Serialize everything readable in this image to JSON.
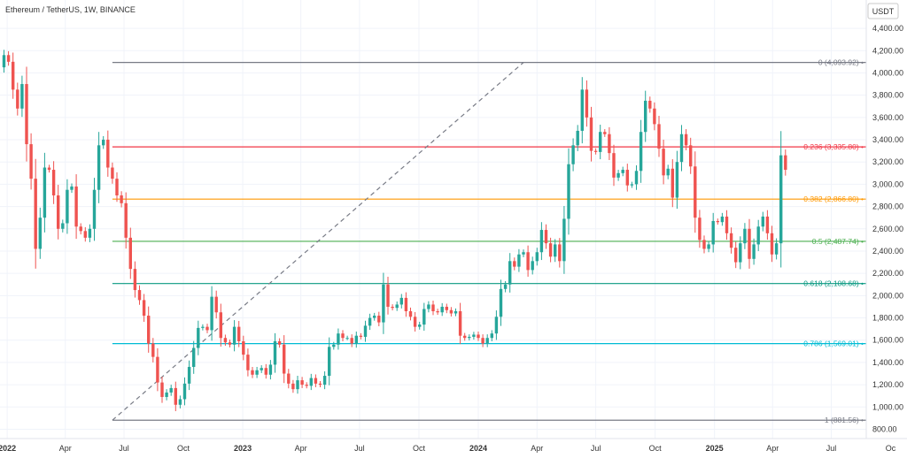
{
  "header": {
    "symbol_title": "Ethereum / TetherUS, 1W, BINANCE"
  },
  "price_axis": {
    "currency": "USDT",
    "ticks": [
      800,
      1000,
      1200,
      1400,
      1600,
      1800,
      2000,
      2200,
      2400,
      2600,
      2800,
      3000,
      3200,
      3400,
      3600,
      3800,
      4000,
      4200,
      4400
    ],
    "tick_labels": [
      "800.00",
      "1,000.00",
      "1,200.00",
      "1,400.00",
      "1,600.00",
      "1,800.00",
      "2,000.00",
      "2,200.00",
      "2,400.00",
      "2,600.00",
      "2,800.00",
      "3,000.00",
      "3,200.00",
      "3,400.00",
      "3,600.00",
      "3,800.00",
      "4,000.00",
      "4,200.00",
      "4,400.00"
    ]
  },
  "time_axis": {
    "labels": [
      {
        "label": "2022",
        "date": "2022-01-01",
        "bold": true
      },
      {
        "label": "Apr",
        "date": "2022-04-01",
        "bold": false
      },
      {
        "label": "Jul",
        "date": "2022-07-01",
        "bold": false
      },
      {
        "label": "Oct",
        "date": "2022-10-01",
        "bold": false
      },
      {
        "label": "2023",
        "date": "2023-01-01",
        "bold": true
      },
      {
        "label": "Apr",
        "date": "2023-04-01",
        "bold": false
      },
      {
        "label": "Jul",
        "date": "2023-07-01",
        "bold": false
      },
      {
        "label": "Oct",
        "date": "2023-10-01",
        "bold": false
      },
      {
        "label": "2024",
        "date": "2024-01-01",
        "bold": true
      },
      {
        "label": "Apr",
        "date": "2024-04-01",
        "bold": false
      },
      {
        "label": "Jul",
        "date": "2024-07-01",
        "bold": false
      },
      {
        "label": "Oct",
        "date": "2024-10-01",
        "bold": false
      },
      {
        "label": "2025",
        "date": "2025-01-01",
        "bold": true
      },
      {
        "label": "Apr",
        "date": "2025-04-01",
        "bold": false
      },
      {
        "label": "Jul",
        "date": "2025-07-01",
        "bold": false
      },
      {
        "label": "Oc",
        "date": "2025-10-01",
        "bold": false
      }
    ]
  },
  "colors": {
    "up": "#26a69a",
    "down": "#ef5350",
    "grid": "#f0f3fa",
    "axis_text": "#333333",
    "trend": "#787b86"
  },
  "chart_data": {
    "type": "candlestick",
    "title": "Ethereum / TetherUS, 1W, BINANCE",
    "interval": "1W",
    "y_unit": "USDT",
    "ylim": [
      800,
      4450
    ],
    "xlim": [
      "2021-12-27",
      "2025-10-20"
    ],
    "grid": true,
    "fib_retracement": {
      "trend_start": {
        "date": "2022-06-13",
        "price": 881.56
      },
      "trend_end": {
        "date": "2024-03-11",
        "price": 4093.92
      },
      "levels": [
        {
          "ratio": "0",
          "price": 4093.92,
          "label": "0 (4,093.92)",
          "color": "#787b86"
        },
        {
          "ratio": "0.236",
          "price": 3335.8,
          "label": "0.236 (3,335.80)",
          "color": "#f23645"
        },
        {
          "ratio": "0.382",
          "price": 2866.8,
          "label": "0.382 (2,866.80)",
          "color": "#ff9800"
        },
        {
          "ratio": "0.5",
          "price": 2487.74,
          "label": "0.5 (2,487.74)",
          "color": "#4caf50"
        },
        {
          "ratio": "0.618",
          "price": 2108.68,
          "label": "0.618 (2,108.68)",
          "color": "#089981"
        },
        {
          "ratio": "0.786",
          "price": 1569.01,
          "label": "0.786 (1,569.01)",
          "color": "#00bcd4"
        },
        {
          "ratio": "1",
          "price": 881.56,
          "label": "1 (881.56)",
          "color": "#787b86"
        }
      ]
    },
    "weekly_close_start": {
      "date": "2021-12-27",
      "open": 4050
    },
    "weekly_close": [
      4160,
      4100,
      3850,
      3680,
      3900,
      3360,
      3050,
      2420,
      2700,
      3150,
      3130,
      2900,
      2600,
      2650,
      2950,
      2980,
      2620,
      2580,
      2520,
      2600,
      2950,
      3350,
      3400,
      3150,
      3050,
      2900,
      2830,
      2520,
      2240,
      2050,
      1960,
      1820,
      1570,
      1450,
      1220,
      1090,
      1130,
      1170,
      1020,
      1070,
      1210,
      1360,
      1530,
      1710,
      1720,
      1690,
      1990,
      1850,
      1620,
      1580,
      1560,
      1720,
      1590,
      1470,
      1330,
      1290,
      1330,
      1350,
      1290,
      1380,
      1590,
      1560,
      1300,
      1210,
      1160,
      1240,
      1200,
      1190,
      1260,
      1210,
      1200,
      1280,
      1540,
      1560,
      1660,
      1620,
      1620,
      1570,
      1640,
      1630,
      1730,
      1800,
      1820,
      1760,
      2100,
      1900,
      1890,
      1920,
      1980,
      1860,
      1810,
      1720,
      1740,
      1880,
      1920,
      1860,
      1850,
      1900,
      1870,
      1840,
      1860,
      1640,
      1620,
      1630,
      1650,
      1620,
      1570,
      1620,
      1660,
      1810,
      2060,
      2100,
      2310,
      2260,
      2370,
      2390,
      2230,
      2310,
      2390,
      2590,
      2470,
      2350,
      2460,
      2310,
      2690,
      3180,
      3350,
      3480,
      3850,
      3600,
      3300,
      3290,
      3470,
      3450,
      3280,
      3060,
      3100,
      3130,
      2990,
      3000,
      3120,
      3470,
      3750,
      3680,
      3540,
      3320,
      3080,
      3140,
      2880,
      3200,
      3450,
      3350,
      3160,
      2700,
      2500,
      2420,
      2460,
      2670,
      2660,
      2710,
      2560,
      2430,
      2300,
      2470,
      2600,
      2330,
      2460,
      2620,
      2710,
      2560,
      2370,
      2470,
      3260,
      3130
    ]
  }
}
